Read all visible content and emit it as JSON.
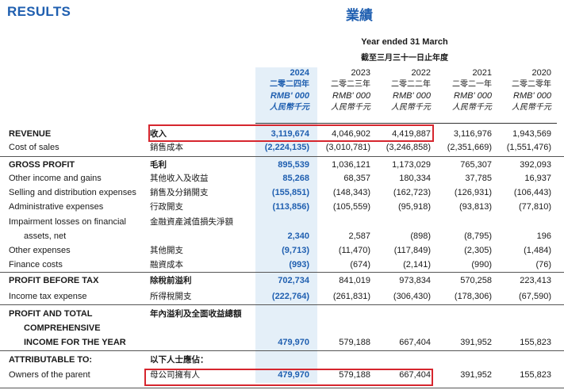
{
  "title_en": "RESULTS",
  "title_zh": "業績",
  "period_en": "Year ended 31 March",
  "period_zh": "截至三月三十一日止年度",
  "years": [
    {
      "year": "2024",
      "year_zh": "二零二四年",
      "unit_en": "RMB' 000",
      "unit_zh": "人民幣千元"
    },
    {
      "year": "2023",
      "year_zh": "二零二三年",
      "unit_en": "RMB' 000",
      "unit_zh": "人民幣千元"
    },
    {
      "year": "2022",
      "year_zh": "二零二二年",
      "unit_en": "RMB' 000",
      "unit_zh": "人民幣千元"
    },
    {
      "year": "2021",
      "year_zh": "二零二一年",
      "unit_en": "RMB' 000",
      "unit_zh": "人民幣千元"
    },
    {
      "year": "2020",
      "year_zh": "二零二零年",
      "unit_en": "RMB' 000",
      "unit_zh": "人民幣千元"
    }
  ],
  "rows": [
    {
      "en": "REVENUE",
      "zh": "收入",
      "bold": true,
      "values": [
        "3,119,674",
        "4,046,902",
        "4,419,887",
        "3,116,976",
        "1,943,569"
      ]
    },
    {
      "en": "Cost of sales",
      "zh": "銷售成本",
      "bold": false,
      "values": [
        "(2,224,135)",
        "(3,010,781)",
        "(3,246,858)",
        "(2,351,669)",
        "(1,551,476)"
      ]
    },
    {
      "en": "GROSS PROFIT",
      "zh": "毛利",
      "bold": true,
      "values": [
        "895,539",
        "1,036,121",
        "1,173,029",
        "765,307",
        "392,093"
      ]
    },
    {
      "en": "Other income and gains",
      "zh": "其他收入及收益",
      "bold": false,
      "values": [
        "85,268",
        "68,357",
        "180,334",
        "37,785",
        "16,937"
      ]
    },
    {
      "en": "Selling and distribution expenses",
      "zh": "銷售及分銷開支",
      "bold": false,
      "values": [
        "(155,851)",
        "(148,343)",
        "(162,723)",
        "(126,931)",
        "(106,443)"
      ]
    },
    {
      "en": "Administrative expenses",
      "zh": "行政開支",
      "bold": false,
      "values": [
        "(113,856)",
        "(105,559)",
        "(95,918)",
        "(93,813)",
        "(77,810)"
      ]
    },
    {
      "en": "Impairment losses on financial",
      "zh": "金融資產減值損失淨額",
      "bold": false,
      "values": [
        "",
        "",
        "",
        "",
        ""
      ]
    },
    {
      "en": "assets, net",
      "zh": "",
      "bold": false,
      "indent": true,
      "values": [
        "2,340",
        "2,587",
        "(898)",
        "(8,795)",
        "196"
      ]
    },
    {
      "en": "Other expenses",
      "zh": "其他開支",
      "bold": false,
      "values": [
        "(9,713)",
        "(11,470)",
        "(117,849)",
        "(2,305)",
        "(1,484)"
      ]
    },
    {
      "en": "Finance costs",
      "zh": "融資成本",
      "bold": false,
      "values": [
        "(993)",
        "(674)",
        "(2,141)",
        "(990)",
        "(76)"
      ]
    },
    {
      "en": "PROFIT BEFORE TAX",
      "zh": "除稅前溢利",
      "bold": true,
      "values": [
        "702,734",
        "841,019",
        "973,834",
        "570,258",
        "223,413"
      ]
    },
    {
      "en": "Income tax expense",
      "zh": "所得稅開支",
      "bold": false,
      "values": [
        "(222,764)",
        "(261,831)",
        "(306,430)",
        "(178,306)",
        "(67,590)"
      ]
    },
    {
      "en": "PROFIT AND TOTAL",
      "zh": "年內溢利及全面收益總額",
      "bold": true,
      "values": [
        "",
        "",
        "",
        "",
        ""
      ]
    },
    {
      "en": "COMPREHENSIVE",
      "zh": "",
      "bold": true,
      "indent": true,
      "values": [
        "",
        "",
        "",
        "",
        ""
      ]
    },
    {
      "en": "INCOME FOR THE YEAR",
      "zh": "",
      "bold": true,
      "indent": true,
      "values": [
        "479,970",
        "579,188",
        "667,404",
        "391,952",
        "155,823"
      ]
    },
    {
      "en": "ATTRIBUTABLE TO:",
      "zh": "以下人士應佔：",
      "bold": true,
      "values": [
        "",
        "",
        "",
        "",
        ""
      ]
    },
    {
      "en": "Owners of the parent",
      "zh": "母公司擁有人",
      "bold": false,
      "values": [
        "479,970",
        "579,188",
        "667,404",
        "391,952",
        "155,823"
      ]
    }
  ],
  "highlight_color": "#d6262e",
  "accent_color": "#1f5fb0"
}
